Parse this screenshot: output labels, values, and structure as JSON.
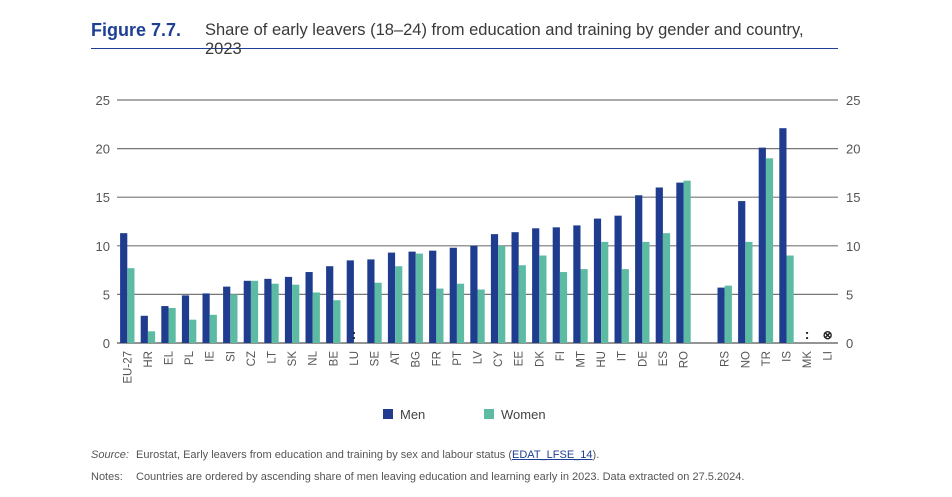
{
  "header": {
    "figure_number": "Figure 7.7.",
    "title": "Share of early leavers (18–24) from education and training by gender and country, 2023"
  },
  "chart_data": {
    "type": "bar",
    "title": "Share of early leavers (18–24) from education and training by gender and country, 2023",
    "xlabel": "",
    "ylabel": "",
    "ylim": [
      0,
      25
    ],
    "yticks": [
      "0",
      "5",
      "10",
      "15",
      "20",
      "25"
    ],
    "grid": true,
    "legend_position": "bottom-center",
    "categories": [
      "EU-27",
      "HR",
      "EL",
      "PL",
      "IE",
      "SI",
      "CZ",
      "LT",
      "SK",
      "NL",
      "BE",
      "LU",
      "SE",
      "AT",
      "BG",
      "FR",
      "PT",
      "LV",
      "CY",
      "EE",
      "DK",
      "FI",
      "MT",
      "HU",
      "IT",
      "DE",
      "ES",
      "RO",
      "",
      "RS",
      "NO",
      "TR",
      "IS",
      "MK",
      "LI"
    ],
    "series": [
      {
        "name": "Men",
        "color": "#1f3c8f",
        "values": [
          11.3,
          2.8,
          3.8,
          4.9,
          5.1,
          5.8,
          6.4,
          6.6,
          6.8,
          7.3,
          7.9,
          8.5,
          8.6,
          9.3,
          9.4,
          9.5,
          9.8,
          10.0,
          11.2,
          11.4,
          11.8,
          11.9,
          12.1,
          12.8,
          13.1,
          15.2,
          16.0,
          16.5,
          null,
          5.7,
          14.6,
          20.1,
          22.1,
          null,
          null
        ]
      },
      {
        "name": "Women",
        "color": "#5dbba3",
        "values": [
          7.7,
          1.2,
          3.6,
          2.4,
          2.9,
          5.0,
          6.4,
          6.1,
          6.0,
          5.2,
          4.4,
          null,
          6.2,
          7.9,
          9.2,
          5.6,
          6.1,
          5.5,
          10.0,
          8.0,
          9.0,
          7.3,
          7.6,
          10.4,
          7.6,
          10.4,
          11.3,
          16.7,
          null,
          5.9,
          10.4,
          19.0,
          9.0,
          null,
          null
        ]
      }
    ],
    "annotations": [
      {
        "category": "LU",
        "text": ":"
      },
      {
        "category": "MK",
        "text": ":"
      },
      {
        "category": "LI",
        "text": "⊗"
      }
    ]
  },
  "footer": {
    "source_label": "Source:",
    "source_text": "Eurostat, Early leavers from education and training by sex and labour status (",
    "source_link": "EDAT_LFSE_14",
    "source_end": ").",
    "notes_label": "Notes:",
    "notes_text": "Countries are ordered by ascending share of men leaving education and learning early in 2023. Data extracted on 27.5.2024."
  }
}
